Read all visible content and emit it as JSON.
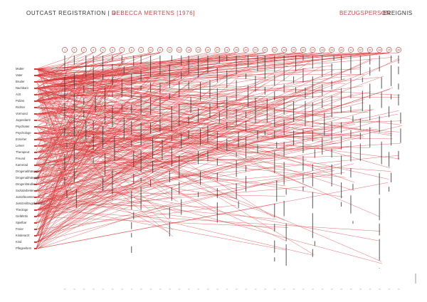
{
  "header": {
    "title": "OUTCAST REGISTRATION | D",
    "subject": "REBECCA MERTENS [1976]",
    "legend_relation": "BEZUGSPERSON",
    "legend_event": "EREIGNIS"
  },
  "colors": {
    "accent": "#d04848",
    "text": "#333333",
    "line": "#d83a3a"
  },
  "persons": [
    "Mutter",
    "Vater",
    "Bruder",
    "Nachbarn",
    "Arzt",
    "Polizei",
    "Richter",
    "Vormund",
    "Jugendamt",
    "Psychiater",
    "Psychologe",
    "Erzieher",
    "Lehrer",
    "Therapeut",
    "Freund",
    "Kamerad",
    "Drogenabhängige",
    "Drogenabhängige",
    "Drogenhändler",
    "Sozialarbeiter",
    "Justizbeamter",
    "Justizvollzugsbeamter",
    "Theologe",
    "Gefährtin",
    "Spielbar",
    "Freier",
    "Kinderarzt",
    "Kind",
    "Pflegeeltern"
  ],
  "events": [
    "1",
    "2",
    "3",
    "4",
    "5",
    "6",
    "7",
    "8",
    "9",
    "10",
    "11",
    "12",
    "13",
    "14",
    "15",
    "16",
    "17",
    "18",
    "19",
    "20",
    "21",
    "22",
    "23",
    "24",
    "25",
    "26",
    "27",
    "28",
    "29",
    "30",
    "31",
    "32",
    "33",
    "34",
    "35",
    "36"
  ]
}
